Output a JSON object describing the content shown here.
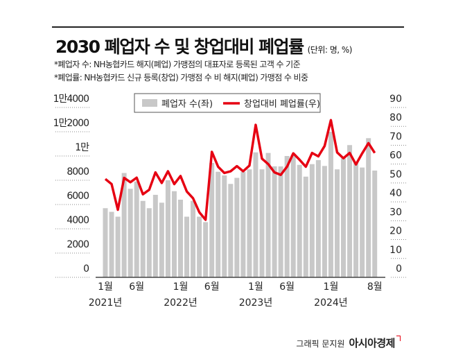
{
  "header": {
    "title": "2030 폐업자 수 및 창업대비 폐업률",
    "unit": "(단위: 명, %)",
    "notes": [
      "*폐업자 수: NH농협카드 해지(폐업) 가맹점의 대표자로 등록된 고객 수 기준",
      "*폐업률: NH농협카드 신규 등록(창업) 가맹점 수 비 해지(폐업) 가맹점 수 비중"
    ]
  },
  "footer": {
    "credit": "그래픽 문지원",
    "brand": "아시아경제"
  },
  "colors": {
    "bar": "#c8c8c8",
    "line": "#e60012",
    "text": "#222222"
  },
  "chart_data": {
    "type": "bar+line",
    "title": "2030 폐업자 수 및 창업대비 폐업률",
    "left_axis": {
      "ylim": [
        0,
        14000
      ],
      "tick_labels": [
        "0",
        "2000",
        "4000",
        "6000",
        "8000",
        "1만",
        "1만2000",
        "1만4000"
      ]
    },
    "right_axis": {
      "ylim": [
        0,
        90
      ],
      "tick_labels": [
        "0",
        "10",
        "20",
        "30",
        "40",
        "50",
        "60",
        "70",
        "80",
        "90"
      ]
    },
    "x_labels": [
      {
        "index": 0,
        "month": "1월",
        "year": "2021년"
      },
      {
        "index": 5,
        "month": "6월",
        "year": ""
      },
      {
        "index": 12,
        "month": "1월",
        "year": "2022년"
      },
      {
        "index": 17,
        "month": "6월",
        "year": ""
      },
      {
        "index": 24,
        "month": "1월",
        "year": "2023년"
      },
      {
        "index": 29,
        "month": "6월",
        "year": ""
      },
      {
        "index": 36,
        "month": "1월",
        "year": "2024년"
      },
      {
        "index": 43,
        "month": "8월",
        "year": ""
      }
    ],
    "legend": {
      "placement": "top-center",
      "entries": [
        "폐업자 수(좌)",
        "창업대비 폐업률(우)"
      ]
    },
    "series": [
      {
        "name": "폐업자 수(좌)",
        "type": "bar",
        "axis": "left",
        "values": [
          5700,
          5400,
          5000,
          8600,
          7300,
          7900,
          6300,
          5700,
          6800,
          6150,
          8000,
          7100,
          6400,
          5000,
          6300,
          5000,
          4550,
          9430,
          8700,
          8400,
          7700,
          8200,
          8700,
          8900,
          10300,
          8900,
          10250,
          9150,
          9140,
          10000,
          10100,
          9270,
          8300,
          9330,
          9660,
          9180,
          12000,
          8900,
          9800,
          10900,
          9430,
          9050,
          11470,
          8800
        ]
      },
      {
        "name": "창업대비 폐업률(우)",
        "type": "line",
        "axis": "right",
        "values": [
          52.1,
          49.4,
          35.8,
          52.7,
          50.4,
          52.8,
          44,
          46.4,
          55.6,
          50,
          56.2,
          49.4,
          53.7,
          45.5,
          41.9,
          34.5,
          30.5,
          66.5,
          58.6,
          55.3,
          56.2,
          58.9,
          56.2,
          59.2,
          80.8,
          62.9,
          60,
          55.6,
          54.3,
          58.6,
          65.7,
          62.3,
          58.6,
          65.9,
          64.1,
          69.6,
          83.3,
          66.2,
          63.1,
          65.9,
          59.8,
          65.7,
          71.1,
          65.9
        ]
      }
    ]
  }
}
